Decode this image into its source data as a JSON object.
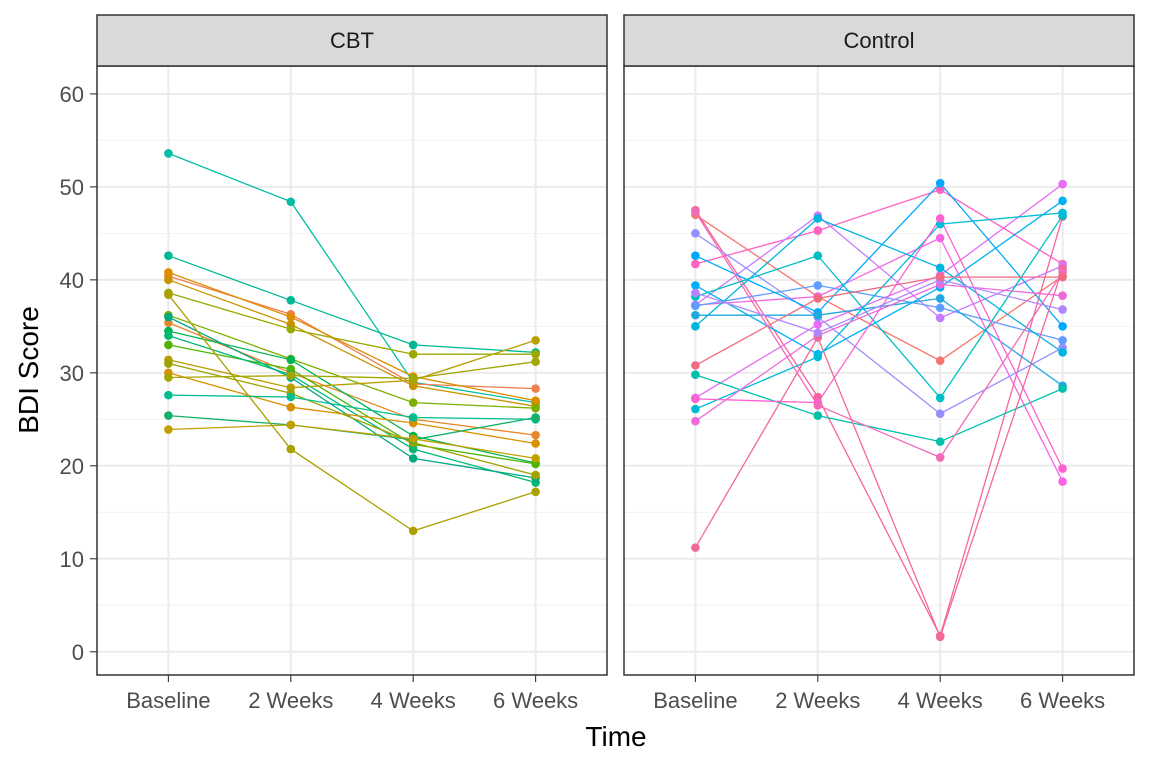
{
  "chart_data": {
    "type": "line",
    "xlabel": "Time",
    "ylabel": "BDI Score",
    "ylim": [
      -2.5,
      63
    ],
    "yticks": [
      0,
      10,
      20,
      30,
      40,
      50,
      60
    ],
    "categories": [
      "Baseline",
      "2 Weeks",
      "4 Weeks",
      "6 Weeks"
    ],
    "grid": true,
    "legend": "none",
    "panels": [
      {
        "label": "CBT",
        "series": [
          {
            "color": "#00BFA5",
            "values": [
              53.6,
              48.4,
              29.0,
              26.8
            ]
          },
          {
            "color": "#00B894",
            "values": [
              42.6,
              37.8,
              33.0,
              32.2
            ]
          },
          {
            "color": "#F07E4C",
            "values": [
              40.4,
              36.3,
              28.8,
              28.3
            ]
          },
          {
            "color": "#DE8C00",
            "values": [
              40.8,
              36.0,
              29.6,
              27.0
            ]
          },
          {
            "color": "#C99300",
            "values": [
              40.0,
              35.2,
              28.6,
              26.4
            ]
          },
          {
            "color": "#9AA800",
            "values": [
              38.6,
              34.7,
              32.0,
              32.0
            ]
          },
          {
            "color": "#E8882A",
            "values": [
              35.4,
              30.0,
              25.0,
              23.3
            ]
          },
          {
            "color": "#7CAE00",
            "values": [
              36.2,
              31.5,
              26.8,
              26.2
            ]
          },
          {
            "color": "#00B450",
            "values": [
              34.5,
              31.4,
              23.2,
              20.3
            ]
          },
          {
            "color": "#4EB400",
            "values": [
              33.0,
              30.4,
              22.3,
              20.2
            ]
          },
          {
            "color": "#00BA74",
            "values": [
              34.0,
              29.8,
              21.8,
              18.2
            ]
          },
          {
            "color": "#00A982",
            "values": [
              36.0,
              29.5,
              20.8,
              18.7
            ]
          },
          {
            "color": "#B79F00",
            "values": [
              31.4,
              28.4,
              29.2,
              33.5
            ]
          },
          {
            "color": "#D89000",
            "values": [
              30.0,
              26.3,
              24.6,
              22.4
            ]
          },
          {
            "color": "#9FA200",
            "values": [
              31.0,
              27.8,
              22.5,
              19.0
            ]
          },
          {
            "color": "#00BE8F",
            "values": [
              27.6,
              27.4,
              25.2,
              25.0
            ]
          },
          {
            "color": "#11B16A",
            "values": [
              25.4,
              24.4,
              22.8,
              25.2
            ]
          },
          {
            "color": "#C2A000",
            "values": [
              23.9,
              24.4,
              22.9,
              20.8
            ]
          },
          {
            "color": "#A9A000",
            "values": [
              38.4,
              21.8,
              13.0,
              17.2
            ]
          },
          {
            "color": "#A3A500",
            "values": [
              29.5,
              29.7,
              29.4,
              31.2
            ]
          }
        ]
      },
      {
        "label": "Control",
        "series": [
          {
            "color": "#F8766D",
            "values": [
              47.0,
              38.2,
              31.3,
              40.4
            ]
          },
          {
            "color": "#F8649A",
            "values": [
              47.5,
              27.4,
              1.7,
              46.8
            ]
          },
          {
            "color": "#FF61C3",
            "values": [
              41.7,
              45.3,
              49.7,
              41.7
            ]
          },
          {
            "color": "#F564E3",
            "values": [
              37.3,
              38.2,
              44.5,
              18.3
            ]
          },
          {
            "color": "#E76BF3",
            "values": [
              27.3,
              35.2,
              40.5,
              50.3
            ]
          },
          {
            "color": "#C77CFF",
            "values": [
              37.3,
              46.9,
              35.9,
              41.5
            ]
          },
          {
            "color": "#9590FF",
            "values": [
              45.0,
              36.0,
              25.6,
              32.7
            ]
          },
          {
            "color": "#619CFF",
            "values": [
              37.2,
              39.4,
              37.0,
              33.5
            ]
          },
          {
            "color": "#00A9FF",
            "values": [
              42.6,
              36.5,
              50.4,
              35.0
            ]
          },
          {
            "color": "#00B0F6",
            "values": [
              39.4,
              32.0,
              39.2,
              48.5
            ]
          },
          {
            "color": "#00BFC4",
            "values": [
              38.2,
              42.6,
              27.3,
              46.9
            ]
          },
          {
            "color": "#00B4E0",
            "values": [
              35.0,
              46.6,
              41.3,
              32.2
            ]
          },
          {
            "color": "#1FA8E0",
            "values": [
              36.2,
              36.2,
              38.0,
              28.6
            ]
          },
          {
            "color": "#00C1A9",
            "values": [
              29.8,
              25.4,
              22.6,
              28.3
            ]
          },
          {
            "color": "#00BCD8",
            "values": [
              26.1,
              31.7,
              46.0,
              47.2
            ]
          },
          {
            "color": "#FD61D1",
            "values": [
              27.2,
              26.8,
              46.6,
              19.7
            ]
          },
          {
            "color": "#EE6ADB",
            "values": [
              24.8,
              34.0,
              39.5,
              38.3
            ]
          },
          {
            "color": "#F2689A",
            "values": [
              11.2,
              33.8,
              1.6,
              41.2
            ]
          },
          {
            "color": "#F16CB8",
            "values": [
              47.3,
              26.5,
              20.9,
              40.8
            ]
          },
          {
            "color": "#B086FF",
            "values": [
              38.6,
              34.3,
              40.0,
              36.8
            ]
          },
          {
            "color": "#F06A80",
            "values": [
              30.8,
              38.0,
              40.3,
              40.3
            ]
          }
        ]
      }
    ]
  }
}
